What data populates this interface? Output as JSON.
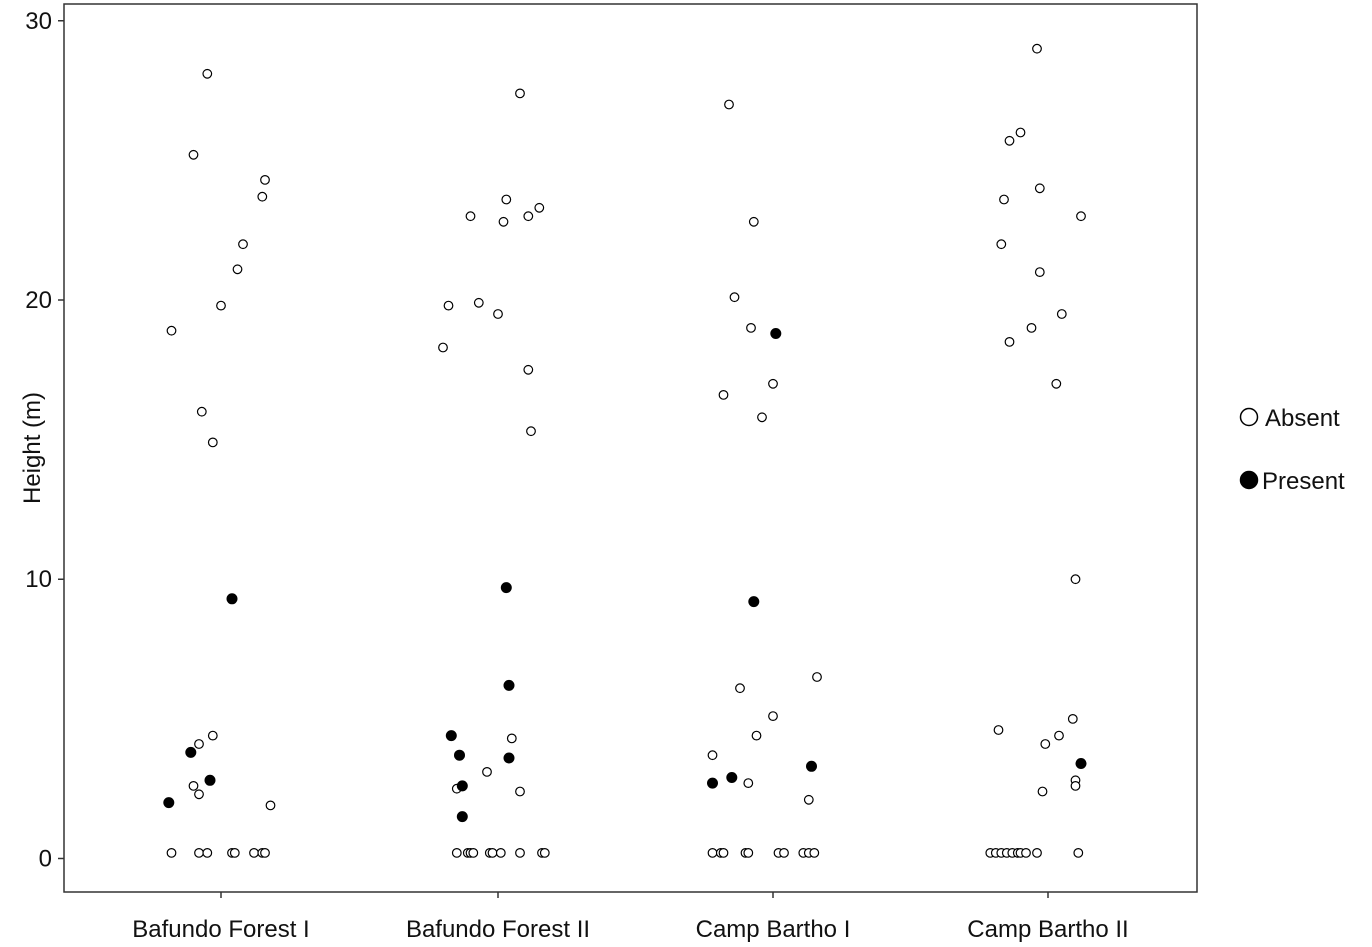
{
  "chart_data": {
    "type": "scatter",
    "title": "",
    "xlabel": "",
    "ylabel": "Height (m)",
    "ylim": [
      -1.2,
      30.6
    ],
    "yticks": [
      0,
      10,
      20,
      30
    ],
    "categories": [
      "Bafundo Forest I",
      "Bafundo Forest II",
      "Camp Bartho I",
      "Camp Bartho II"
    ],
    "grid": false,
    "legend_position": "right",
    "series": [
      {
        "name": "Absent",
        "marker": "open-circle",
        "color": "#000000",
        "points": [
          {
            "cat": 0,
            "jitter": -0.18,
            "y": 18.9
          },
          {
            "cat": 0,
            "jitter": -0.1,
            "y": 25.2
          },
          {
            "cat": 0,
            "jitter": -0.05,
            "y": 28.1
          },
          {
            "cat": 0,
            "jitter": -0.07,
            "y": 16.0
          },
          {
            "cat": 0,
            "jitter": -0.03,
            "y": 14.9
          },
          {
            "cat": 0,
            "jitter": 0.0,
            "y": 19.8
          },
          {
            "cat": 0,
            "jitter": 0.06,
            "y": 21.1
          },
          {
            "cat": 0,
            "jitter": 0.08,
            "y": 22.0
          },
          {
            "cat": 0,
            "jitter": 0.15,
            "y": 23.7
          },
          {
            "cat": 0,
            "jitter": 0.16,
            "y": 24.3
          },
          {
            "cat": 0,
            "jitter": -0.1,
            "y": 2.6
          },
          {
            "cat": 0,
            "jitter": -0.08,
            "y": 4.1
          },
          {
            "cat": 0,
            "jitter": -0.08,
            "y": 2.3
          },
          {
            "cat": 0,
            "jitter": -0.03,
            "y": 4.4
          },
          {
            "cat": 0,
            "jitter": 0.18,
            "y": 1.9
          },
          {
            "cat": 0,
            "jitter": -0.18,
            "y": 0.2
          },
          {
            "cat": 0,
            "jitter": -0.08,
            "y": 0.2
          },
          {
            "cat": 0,
            "jitter": -0.05,
            "y": 0.2
          },
          {
            "cat": 0,
            "jitter": 0.04,
            "y": 0.2
          },
          {
            "cat": 0,
            "jitter": 0.05,
            "y": 0.2
          },
          {
            "cat": 0,
            "jitter": 0.12,
            "y": 0.2
          },
          {
            "cat": 0,
            "jitter": 0.15,
            "y": 0.2
          },
          {
            "cat": 0,
            "jitter": 0.16,
            "y": 0.2
          },
          {
            "cat": 1,
            "jitter": -0.2,
            "y": 18.3
          },
          {
            "cat": 1,
            "jitter": -0.18,
            "y": 19.8
          },
          {
            "cat": 1,
            "jitter": -0.1,
            "y": 23.0
          },
          {
            "cat": 1,
            "jitter": -0.07,
            "y": 19.9
          },
          {
            "cat": 1,
            "jitter": 0.0,
            "y": 19.5
          },
          {
            "cat": 1,
            "jitter": 0.02,
            "y": 22.8
          },
          {
            "cat": 1,
            "jitter": 0.03,
            "y": 23.6
          },
          {
            "cat": 1,
            "jitter": 0.08,
            "y": 27.4
          },
          {
            "cat": 1,
            "jitter": 0.11,
            "y": 23.0
          },
          {
            "cat": 1,
            "jitter": 0.11,
            "y": 17.5
          },
          {
            "cat": 1,
            "jitter": 0.12,
            "y": 15.3
          },
          {
            "cat": 1,
            "jitter": 0.15,
            "y": 23.3
          },
          {
            "cat": 1,
            "jitter": -0.15,
            "y": 2.5
          },
          {
            "cat": 1,
            "jitter": -0.04,
            "y": 3.1
          },
          {
            "cat": 1,
            "jitter": 0.05,
            "y": 4.3
          },
          {
            "cat": 1,
            "jitter": 0.08,
            "y": 2.4
          },
          {
            "cat": 1,
            "jitter": -0.15,
            "y": 0.2
          },
          {
            "cat": 1,
            "jitter": -0.11,
            "y": 0.2
          },
          {
            "cat": 1,
            "jitter": -0.1,
            "y": 0.2
          },
          {
            "cat": 1,
            "jitter": -0.09,
            "y": 0.2
          },
          {
            "cat": 1,
            "jitter": -0.03,
            "y": 0.2
          },
          {
            "cat": 1,
            "jitter": -0.02,
            "y": 0.2
          },
          {
            "cat": 1,
            "jitter": 0.01,
            "y": 0.2
          },
          {
            "cat": 1,
            "jitter": 0.08,
            "y": 0.2
          },
          {
            "cat": 1,
            "jitter": 0.16,
            "y": 0.2
          },
          {
            "cat": 1,
            "jitter": 0.17,
            "y": 0.2
          },
          {
            "cat": 2,
            "jitter": -0.16,
            "y": 27.0
          },
          {
            "cat": 2,
            "jitter": -0.18,
            "y": 16.6
          },
          {
            "cat": 2,
            "jitter": -0.14,
            "y": 20.1
          },
          {
            "cat": 2,
            "jitter": -0.07,
            "y": 22.8
          },
          {
            "cat": 2,
            "jitter": -0.08,
            "y": 19.0
          },
          {
            "cat": 2,
            "jitter": -0.04,
            "y": 15.8
          },
          {
            "cat": 2,
            "jitter": 0.0,
            "y": 17.0
          },
          {
            "cat": 2,
            "jitter": -0.22,
            "y": 3.7
          },
          {
            "cat": 2,
            "jitter": -0.12,
            "y": 6.1
          },
          {
            "cat": 2,
            "jitter": -0.09,
            "y": 2.7
          },
          {
            "cat": 2,
            "jitter": -0.06,
            "y": 4.4
          },
          {
            "cat": 2,
            "jitter": 0.0,
            "y": 5.1
          },
          {
            "cat": 2,
            "jitter": 0.13,
            "y": 2.1
          },
          {
            "cat": 2,
            "jitter": 0.14,
            "y": 3.3
          },
          {
            "cat": 2,
            "jitter": 0.16,
            "y": 6.5
          },
          {
            "cat": 2,
            "jitter": -0.22,
            "y": 0.2
          },
          {
            "cat": 2,
            "jitter": -0.19,
            "y": 0.2
          },
          {
            "cat": 2,
            "jitter": -0.18,
            "y": 0.2
          },
          {
            "cat": 2,
            "jitter": -0.1,
            "y": 0.2
          },
          {
            "cat": 2,
            "jitter": -0.09,
            "y": 0.2
          },
          {
            "cat": 2,
            "jitter": 0.02,
            "y": 0.2
          },
          {
            "cat": 2,
            "jitter": 0.04,
            "y": 0.2
          },
          {
            "cat": 2,
            "jitter": 0.11,
            "y": 0.2
          },
          {
            "cat": 2,
            "jitter": 0.13,
            "y": 0.2
          },
          {
            "cat": 2,
            "jitter": 0.15,
            "y": 0.2
          },
          {
            "cat": 3,
            "jitter": -0.04,
            "y": 29.0
          },
          {
            "cat": 3,
            "jitter": -0.14,
            "y": 25.7
          },
          {
            "cat": 3,
            "jitter": -0.1,
            "y": 26.0
          },
          {
            "cat": 3,
            "jitter": -0.16,
            "y": 23.6
          },
          {
            "cat": 3,
            "jitter": -0.17,
            "y": 22.0
          },
          {
            "cat": 3,
            "jitter": -0.03,
            "y": 24.0
          },
          {
            "cat": 3,
            "jitter": -0.03,
            "y": 21.0
          },
          {
            "cat": 3,
            "jitter": 0.12,
            "y": 23.0
          },
          {
            "cat": 3,
            "jitter": -0.14,
            "y": 18.5
          },
          {
            "cat": 3,
            "jitter": -0.06,
            "y": 19.0
          },
          {
            "cat": 3,
            "jitter": 0.05,
            "y": 19.5
          },
          {
            "cat": 3,
            "jitter": 0.03,
            "y": 17.0
          },
          {
            "cat": 3,
            "jitter": 0.1,
            "y": 10.0
          },
          {
            "cat": 3,
            "jitter": -0.18,
            "y": 4.6
          },
          {
            "cat": 3,
            "jitter": -0.01,
            "y": 4.1
          },
          {
            "cat": 3,
            "jitter": 0.04,
            "y": 4.4
          },
          {
            "cat": 3,
            "jitter": 0.09,
            "y": 5.0
          },
          {
            "cat": 3,
            "jitter": 0.1,
            "y": 2.8
          },
          {
            "cat": 3,
            "jitter": 0.1,
            "y": 2.6
          },
          {
            "cat": 3,
            "jitter": -0.02,
            "y": 2.4
          },
          {
            "cat": 3,
            "jitter": -0.21,
            "y": 0.2
          },
          {
            "cat": 3,
            "jitter": -0.19,
            "y": 0.2
          },
          {
            "cat": 3,
            "jitter": -0.17,
            "y": 0.2
          },
          {
            "cat": 3,
            "jitter": -0.15,
            "y": 0.2
          },
          {
            "cat": 3,
            "jitter": -0.13,
            "y": 0.2
          },
          {
            "cat": 3,
            "jitter": -0.11,
            "y": 0.2
          },
          {
            "cat": 3,
            "jitter": -0.1,
            "y": 0.2
          },
          {
            "cat": 3,
            "jitter": -0.08,
            "y": 0.2
          },
          {
            "cat": 3,
            "jitter": -0.04,
            "y": 0.2
          },
          {
            "cat": 3,
            "jitter": 0.11,
            "y": 0.2
          }
        ]
      },
      {
        "name": "Present",
        "marker": "filled-circle",
        "color": "#000000",
        "points": [
          {
            "cat": 0,
            "jitter": 0.04,
            "y": 9.3
          },
          {
            "cat": 0,
            "jitter": -0.11,
            "y": 3.8
          },
          {
            "cat": 0,
            "jitter": -0.04,
            "y": 2.8
          },
          {
            "cat": 0,
            "jitter": -0.19,
            "y": 2.0
          },
          {
            "cat": 1,
            "jitter": 0.03,
            "y": 9.7
          },
          {
            "cat": 1,
            "jitter": 0.04,
            "y": 6.2
          },
          {
            "cat": 1,
            "jitter": -0.17,
            "y": 4.4
          },
          {
            "cat": 1,
            "jitter": -0.14,
            "y": 3.7
          },
          {
            "cat": 1,
            "jitter": 0.04,
            "y": 3.6
          },
          {
            "cat": 1,
            "jitter": -0.13,
            "y": 2.6
          },
          {
            "cat": 1,
            "jitter": -0.13,
            "y": 1.5
          },
          {
            "cat": 2,
            "jitter": 0.01,
            "y": 18.8
          },
          {
            "cat": 2,
            "jitter": -0.07,
            "y": 9.2
          },
          {
            "cat": 2,
            "jitter": 0.14,
            "y": 3.3
          },
          {
            "cat": 2,
            "jitter": -0.15,
            "y": 2.9
          },
          {
            "cat": 2,
            "jitter": -0.22,
            "y": 2.7
          },
          {
            "cat": 3,
            "jitter": 0.12,
            "y": 3.4
          }
        ]
      }
    ]
  }
}
